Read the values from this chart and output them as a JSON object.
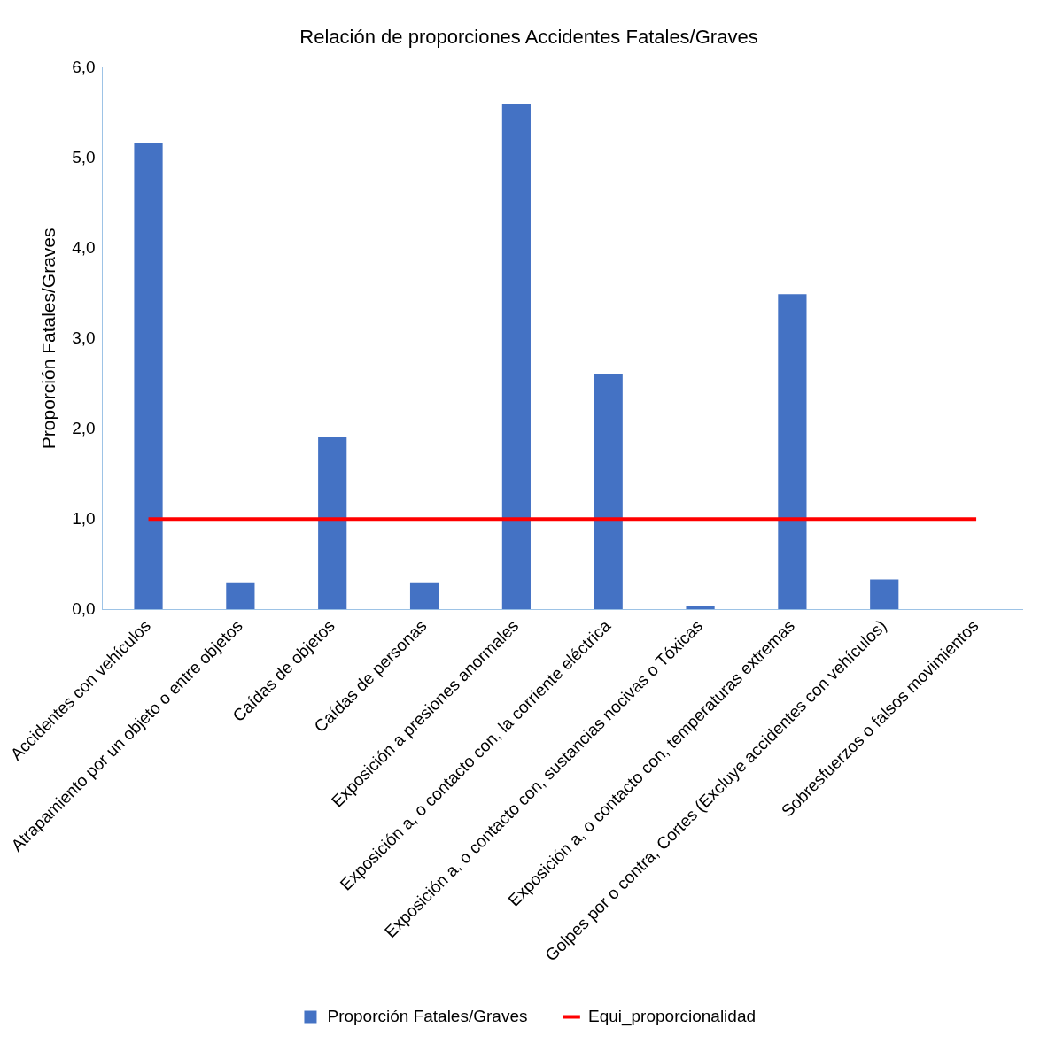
{
  "chart_data": {
    "type": "bar",
    "title": "Relación de proporciones Accidentes Fatales/Graves",
    "ylabel": "Proporción Fatales/Graves",
    "categories": [
      "Accidentes con vehículos",
      "Atrapamiento por un objeto o entre objetos",
      "Caídas de objetos",
      "Caídas de personas",
      "Exposición a presiones anormales",
      "Exposición a, o contacto con, la corriente eléctrica",
      "Exposición a, o contacto con, sustancias nocivas o Tóxicas",
      "Exposición a, o contacto con, temperaturas extremas",
      "Golpes por o contra, Cortes (Excluye accidentes con vehículos)",
      "Sobresfuerzos o falsos movimientos"
    ],
    "series": [
      {
        "name": "Proporción Fatales/Graves",
        "color": "#4472c4",
        "values": [
          5.16,
          0.3,
          1.91,
          0.3,
          5.6,
          2.61,
          0.04,
          3.49,
          0.33,
          0
        ]
      },
      {
        "name": "Equi_proporcionalidad",
        "type": "line",
        "color": "#ff0000",
        "values": [
          1,
          1,
          1,
          1,
          1,
          1,
          1,
          1,
          1,
          1
        ]
      }
    ],
    "ylim": [
      0,
      6
    ],
    "yticks": [
      {
        "value": 0,
        "label": "0,0"
      },
      {
        "value": 1,
        "label": "1,0"
      },
      {
        "value": 2,
        "label": "2,0"
      },
      {
        "value": 3,
        "label": "3,0"
      },
      {
        "value": 4,
        "label": "4,0"
      },
      {
        "value": 5,
        "label": "5,0"
      },
      {
        "value": 6,
        "label": "6,0"
      }
    ],
    "grid": false,
    "legend": "bottom",
    "marker": "none"
  }
}
